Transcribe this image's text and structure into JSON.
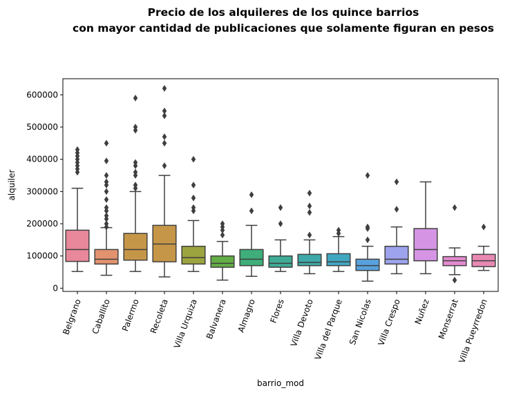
{
  "chart_data": {
    "type": "box",
    "title_line1": "Precio de los alquileres de los quince barrios",
    "title_line2": "con mayor cantidad de publicaciones que solamente figuran en pesos",
    "xlabel": "barrio_mod",
    "ylabel": "alquiler",
    "ylim": [
      -10000,
      650000
    ],
    "yticks": [
      0,
      100000,
      200000,
      300000,
      400000,
      500000,
      600000
    ],
    "ytick_labels": [
      "0",
      "100000",
      "200000",
      "300000",
      "400000",
      "500000",
      "600000"
    ],
    "grid": false,
    "categories": [
      "Belgrano",
      "Caballito",
      "Palermo",
      "Recoleta",
      "Villa Urquiza",
      "Balvanera",
      "Almagro",
      "Flores",
      "Villa Devoto",
      "Villa del Parque",
      "San Nicolas",
      "Villa Crespo",
      "Nuñez",
      "Monserrat",
      "Villa Pueyrredon"
    ],
    "colors": [
      "#e8889a",
      "#e3926f",
      "#c69648",
      "#c69648",
      "#9ca43f",
      "#63ae46",
      "#3fae7a",
      "#3fab95",
      "#3ea9a8",
      "#41a7c1",
      "#58a1dc",
      "#9da3ec",
      "#d594e4",
      "#e48ad0",
      "#e889b3"
    ],
    "boxes": [
      {
        "min": 52000,
        "q1": 83000,
        "median": 120000,
        "q3": 180000,
        "max": 310000,
        "outliers": [
          360000,
          370000,
          380000,
          390000,
          400000,
          410000,
          420000,
          430000
        ]
      },
      {
        "min": 40000,
        "q1": 75000,
        "median": 90000,
        "q3": 120000,
        "max": 188000,
        "outliers": [
          190000,
          200000,
          215000,
          225000,
          240000,
          250000,
          275000,
          300000,
          320000,
          330000,
          350000,
          395000,
          450000
        ]
      },
      {
        "min": 52000,
        "q1": 87000,
        "median": 120000,
        "q3": 170000,
        "max": 300000,
        "outliers": [
          310000,
          320000,
          350000,
          360000,
          380000,
          390000,
          490000,
          500000,
          590000
        ]
      },
      {
        "min": 35000,
        "q1": 82000,
        "median": 137000,
        "q3": 195000,
        "max": 350000,
        "outliers": [
          380000,
          450000,
          470000,
          535000,
          550000,
          620000
        ]
      },
      {
        "min": 52000,
        "q1": 75000,
        "median": 95000,
        "q3": 130000,
        "max": 210000,
        "outliers": [
          240000,
          250000,
          280000,
          320000,
          400000
        ]
      },
      {
        "min": 25000,
        "q1": 65000,
        "median": 77000,
        "q3": 100000,
        "max": 145000,
        "outliers": [
          165000,
          180000,
          190000,
          200000
        ]
      },
      {
        "min": 37000,
        "q1": 70000,
        "median": 90000,
        "q3": 120000,
        "max": 195000,
        "outliers": [
          240000,
          290000
        ]
      },
      {
        "min": 52000,
        "q1": 65000,
        "median": 77000,
        "q3": 100000,
        "max": 150000,
        "outliers": [
          200000,
          250000
        ]
      },
      {
        "min": 45000,
        "q1": 70000,
        "median": 80000,
        "q3": 105000,
        "max": 150000,
        "outliers": [
          165000,
          235000,
          255000,
          295000
        ]
      },
      {
        "min": 52000,
        "q1": 70000,
        "median": 82000,
        "q3": 107000,
        "max": 160000,
        "outliers": [
          170000,
          180000
        ]
      },
      {
        "min": 22000,
        "q1": 55000,
        "median": 70000,
        "q3": 90000,
        "max": 130000,
        "outliers": [
          150000,
          185000,
          190000,
          350000
        ]
      },
      {
        "min": 45000,
        "q1": 75000,
        "median": 90000,
        "q3": 130000,
        "max": 190000,
        "outliers": [
          245000,
          330000
        ]
      },
      {
        "min": 45000,
        "q1": 85000,
        "median": 120000,
        "q3": 185000,
        "max": 330000,
        "outliers": []
      },
      {
        "min": 42000,
        "q1": 70000,
        "median": 85000,
        "q3": 98000,
        "max": 125000,
        "outliers": [
          25000,
          250000
        ]
      },
      {
        "min": 55000,
        "q1": 67000,
        "median": 85000,
        "q3": 105000,
        "max": 130000,
        "outliers": [
          190000
        ]
      }
    ]
  }
}
